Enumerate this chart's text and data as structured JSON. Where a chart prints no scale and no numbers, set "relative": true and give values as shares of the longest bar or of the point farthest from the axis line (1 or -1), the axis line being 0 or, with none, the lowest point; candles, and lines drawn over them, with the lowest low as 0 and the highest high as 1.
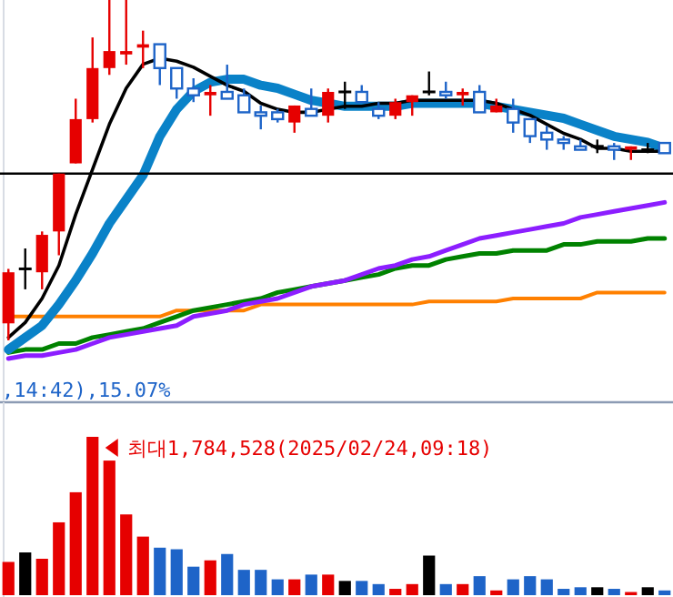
{
  "chart_data": [
    {
      "type": "line",
      "relative": true,
      "categories": [
        null,
        null,
        null,
        null,
        null,
        null,
        null,
        null,
        null,
        null,
        null,
        null,
        null,
        null,
        null,
        null,
        null,
        null,
        null,
        null,
        null,
        null,
        null,
        null,
        null,
        null,
        null,
        null,
        null,
        null,
        null,
        null,
        null,
        null,
        null,
        null,
        null,
        null,
        null,
        null
      ],
      "series": [
        {
          "color": "#ff8000",
          "values": [
            0.14,
            0.14,
            0.14,
            0.14,
            0.14,
            0.14,
            0.14,
            0.14,
            0.14,
            0.14,
            0.16,
            0.16,
            0.16,
            0.16,
            0.16,
            0.18,
            0.18,
            0.18,
            0.18,
            0.18,
            0.18,
            0.18,
            0.18,
            0.18,
            0.18,
            0.19,
            0.19,
            0.19,
            0.19,
            0.19,
            0.2,
            0.2,
            0.2,
            0.2,
            0.2,
            0.22,
            0.22,
            0.22,
            0.22,
            0.22
          ]
        },
        {
          "color": "#008200",
          "values": [
            0.02,
            0.03,
            0.03,
            0.05,
            0.05,
            0.07,
            0.08,
            0.09,
            0.1,
            0.12,
            0.14,
            0.16,
            0.17,
            0.18,
            0.19,
            0.2,
            0.22,
            0.23,
            0.24,
            0.25,
            0.26,
            0.27,
            0.28,
            0.3,
            0.31,
            0.31,
            0.33,
            0.34,
            0.35,
            0.35,
            0.36,
            0.36,
            0.36,
            0.38,
            0.38,
            0.39,
            0.39,
            0.39,
            0.4,
            0.4
          ]
        },
        {
          "color": "#8c1eff",
          "values": [
            0,
            0.01,
            0.01,
            0.02,
            0.03,
            0.05,
            0.07,
            0.08,
            0.09,
            0.1,
            0.11,
            0.14,
            0.15,
            0.16,
            0.18,
            0.19,
            0.2,
            0.22,
            0.24,
            0.25,
            0.26,
            0.28,
            0.3,
            0.31,
            0.33,
            0.34,
            0.36,
            0.38,
            0.4,
            0.41,
            0.42,
            0.43,
            0.44,
            0.45,
            0.47,
            0.48,
            0.49,
            0.5,
            0.51,
            0.52
          ]
        },
        {
          "color": "#0a82c8",
          "values": [
            0.03,
            0.07,
            0.11,
            0.18,
            0.26,
            0.35,
            0.45,
            0.53,
            0.61,
            0.74,
            0.83,
            0.89,
            0.92,
            0.93,
            0.93,
            0.91,
            0.9,
            0.88,
            0.86,
            0.85,
            0.84,
            0.84,
            0.84,
            0.84,
            0.85,
            0.85,
            0.85,
            0.85,
            0.85,
            0.84,
            0.83,
            0.82,
            0.81,
            0.8,
            0.78,
            0.76,
            0.74,
            0.73,
            0.72,
            0.7
          ]
        },
        {
          "color": "#000000",
          "values": [
            0.07,
            0.12,
            0.2,
            0.31,
            0.48,
            0.63,
            0.78,
            0.9,
            0.98,
            1,
            0.99,
            0.97,
            0.94,
            0.91,
            0.89,
            0.85,
            0.83,
            0.82,
            0.82,
            0.83,
            0.84,
            0.84,
            0.85,
            0.85,
            0.86,
            0.86,
            0.86,
            0.86,
            0.86,
            0.85,
            0.83,
            0.81,
            0.78,
            0.75,
            0.73,
            0.7,
            0.7,
            0.69,
            0.69,
            0.69
          ]
        }
      ]
    },
    {
      "type": "candlestick",
      "relative": true,
      "categories": [
        null,
        null,
        null,
        null,
        null,
        null,
        null,
        null,
        null,
        null,
        null,
        null,
        null,
        null,
        null,
        null,
        null,
        null,
        null,
        null,
        null,
        null,
        null,
        null,
        null,
        null,
        null,
        null,
        null,
        null,
        null,
        null,
        null,
        null,
        null,
        null,
        null,
        null,
        null,
        null
      ],
      "ohlc": [
        [
          0.05,
          0.21,
          0,
          0.2
        ],
        [
          0.21,
          0.27,
          0.15,
          0.21
        ],
        [
          0.2,
          0.32,
          0.15,
          0.31
        ],
        [
          0.32,
          0.49,
          0.25,
          0.49
        ],
        [
          0.52,
          0.71,
          0.52,
          0.65
        ],
        [
          0.65,
          0.89,
          0.64,
          0.8
        ],
        [
          0.8,
          1,
          0.78,
          0.85
        ],
        [
          0.84,
          1,
          0.81,
          0.85
        ],
        [
          0.86,
          0.91,
          0.8,
          0.87
        ],
        [
          0.87,
          0.87,
          0.75,
          0.8
        ],
        [
          0.8,
          0.8,
          0.71,
          0.74
        ],
        [
          0.74,
          0.77,
          0.7,
          0.72
        ],
        [
          0.72,
          0.75,
          0.66,
          0.73
        ],
        [
          0.73,
          0.81,
          0.71,
          0.71
        ],
        [
          0.72,
          0.74,
          0.67,
          0.67
        ],
        [
          0.67,
          0.69,
          0.62,
          0.66
        ],
        [
          0.67,
          0.68,
          0.64,
          0.65
        ],
        [
          0.64,
          0.69,
          0.61,
          0.69
        ],
        [
          0.68,
          0.74,
          0.66,
          0.66
        ],
        [
          0.66,
          0.74,
          0.64,
          0.73
        ],
        [
          0.73,
          0.76,
          0.68,
          0.73
        ],
        [
          0.73,
          0.75,
          0.7,
          0.7
        ],
        [
          0.68,
          0.7,
          0.65,
          0.66
        ],
        [
          0.66,
          0.71,
          0.65,
          0.7
        ],
        [
          0.7,
          0.72,
          0.66,
          0.72
        ],
        [
          0.73,
          0.79,
          0.72,
          0.73
        ],
        [
          0.73,
          0.76,
          0.71,
          0.72
        ],
        [
          0.72,
          0.74,
          0.69,
          0.73
        ],
        [
          0.73,
          0.75,
          0.67,
          0.67
        ],
        [
          0.67,
          0.71,
          0.67,
          0.69
        ],
        [
          0.68,
          0.71,
          0.61,
          0.64
        ],
        [
          0.65,
          0.65,
          0.58,
          0.6
        ],
        [
          0.61,
          0.63,
          0.56,
          0.59
        ],
        [
          0.59,
          0.6,
          0.56,
          0.58
        ],
        [
          0.57,
          0.59,
          0.56,
          0.56
        ],
        [
          0.57,
          0.59,
          0.55,
          0.57
        ],
        [
          0.57,
          0.58,
          0.53,
          0.56
        ],
        [
          0.56,
          0.57,
          0.53,
          0.57
        ],
        [
          0.56,
          0.58,
          0.55,
          0.56
        ],
        [
          0.58,
          0.58,
          0.55,
          0.55
        ]
      ],
      "ref_lines": [
        {
          "axis": "y",
          "value": 0.49,
          "color": "#000000"
        }
      ],
      "annotations": [
        ",14:42),15.07%"
      ]
    },
    {
      "type": "bar",
      "relative": true,
      "categories": [
        null,
        null,
        null,
        null,
        null,
        null,
        null,
        null,
        null,
        null,
        null,
        null,
        null,
        null,
        null,
        null,
        null,
        null,
        null,
        null,
        null,
        null,
        null,
        null,
        null,
        null,
        null,
        null,
        null,
        null,
        null,
        null,
        null,
        null,
        null,
        null,
        null,
        null,
        null,
        null
      ],
      "values": [
        0.21,
        0.27,
        0.23,
        0.46,
        0.65,
        1,
        0.85,
        0.51,
        0.37,
        0.3,
        0.29,
        0.18,
        0.22,
        0.26,
        0.16,
        0.16,
        0.1,
        0.1,
        0.13,
        0.13,
        0.09,
        0.09,
        0.07,
        0.04,
        0.07,
        0.25,
        0.07,
        0.07,
        0.12,
        0.03,
        0.1,
        0.12,
        0.1,
        0.04,
        0.05,
        0.05,
        0.04,
        0.02,
        0.05,
        0.03
      ],
      "colors": [
        "#e60000",
        "#000000",
        "#e60000",
        "#e60000",
        "#e60000",
        "#e60000",
        "#e60000",
        "#e60000",
        "#e60000",
        "#1e64c8",
        "#1e64c8",
        "#1e64c8",
        "#e60000",
        "#1e64c8",
        "#1e64c8",
        "#1e64c8",
        "#1e64c8",
        "#e60000",
        "#1e64c8",
        "#e60000",
        "#000000",
        "#1e64c8",
        "#1e64c8",
        "#e60000",
        "#e60000",
        "#000000",
        "#1e64c8",
        "#e60000",
        "#1e64c8",
        "#e60000",
        "#1e64c8",
        "#1e64c8",
        "#1e64c8",
        "#1e64c8",
        "#1e64c8",
        "#000000",
        "#1e64c8",
        "#e60000",
        "#000000",
        "#1e64c8"
      ],
      "annotations": [
        "최대1,784,528(2025/02/24,09:18)"
      ]
    }
  ]
}
